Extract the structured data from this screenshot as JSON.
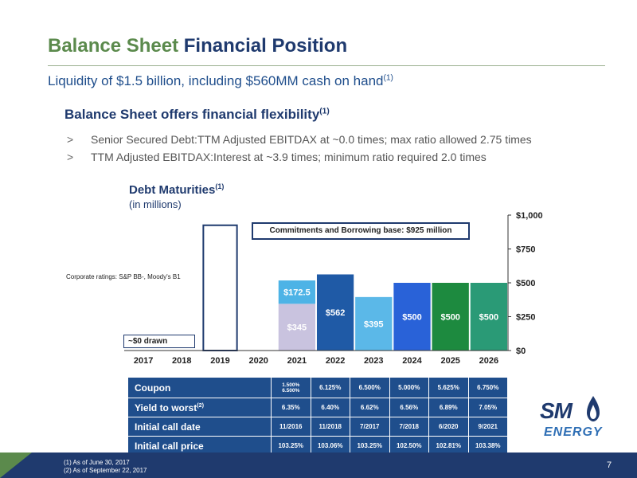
{
  "title": {
    "part1": "Balance Sheet ",
    "part2": "Financial Position"
  },
  "subtitle": {
    "text": "Liquidity of $1.5 billion, including $560MM cash on hand",
    "sup": "(1)"
  },
  "section": {
    "heading": "Balance Sheet offers financial flexibility",
    "sup": "(1)"
  },
  "bullets": [
    {
      "mark": ">",
      "text": "Senior Secured Debt:TTM Adjusted EBITDAX at ~0.0 times; max ratio allowed 2.75 times"
    },
    {
      "mark": ">",
      "text": "TTM Adjusted EBITDAX:Interest at ~3.9 times; minimum ratio required 2.0 times"
    }
  ],
  "chart_heading": {
    "title": "Debt Maturities",
    "sup": "(1)",
    "sub": "(in millions)"
  },
  "ratings": "Corporate ratings: S&P BB-, Moody's B1",
  "callouts": {
    "borrowing": "Commitments and Borrowing base: $925 million",
    "drawn": "~$0 drawn"
  },
  "chart_data": {
    "type": "bar",
    "categories": [
      "2017",
      "2018",
      "2019",
      "2020",
      "2021",
      "2022",
      "2023",
      "2024",
      "2025",
      "2026"
    ],
    "ylim": [
      0,
      1000
    ],
    "yticks": [
      "$0",
      "$250",
      "$500",
      "$750",
      "$1,000"
    ],
    "yticks_values": [
      0,
      250,
      500,
      750,
      1000
    ],
    "bars": [
      {
        "category": "2019",
        "value": 925,
        "label": "",
        "style": "outline",
        "color": "#1f3a6e"
      },
      {
        "category": "2021",
        "value": 345,
        "label": "$345",
        "color": "#c9c3df"
      },
      {
        "category": "2021",
        "value": 172.5,
        "base": 345,
        "label": "$172.5",
        "color": "#4db3e6"
      },
      {
        "category": "2022",
        "value": 562,
        "label": "$562",
        "color": "#1f5aa6"
      },
      {
        "category": "2023",
        "value": 395,
        "label": "$395",
        "color": "#5bb8e8"
      },
      {
        "category": "2024",
        "value": 500,
        "label": "$500",
        "color": "#2962d8"
      },
      {
        "category": "2025",
        "value": 500,
        "label": "$500",
        "color": "#1d8a3f"
      },
      {
        "category": "2026",
        "value": 500,
        "label": "$500",
        "color": "#2a9a76"
      }
    ]
  },
  "table": {
    "rows": [
      {
        "label": "Coupon",
        "sup": "",
        "cells": [
          "1.500%\n6.500%",
          "6.125%",
          "6.500%",
          "5.000%",
          "5.625%",
          "6.750%"
        ]
      },
      {
        "label": "Yield to worst",
        "sup": "(2)",
        "cells": [
          "6.35%",
          "6.40%",
          "6.62%",
          "6.56%",
          "6.89%",
          "7.05%"
        ]
      },
      {
        "label": "Initial call date",
        "sup": "",
        "cells": [
          "11/2016",
          "11/2018",
          "7/2017",
          "7/2018",
          "6/2020",
          "9/2021"
        ]
      },
      {
        "label": "Initial call price",
        "sup": "",
        "cells": [
          "103.25%",
          "103.06%",
          "103.25%",
          "102.50%",
          "102.81%",
          "103.38%"
        ]
      }
    ]
  },
  "logo": {
    "top": "SM",
    "bottom": "ENERGY"
  },
  "footnotes": [
    "(1)   As of June 30, 2017",
    "(2)   As of September 22, 2017"
  ],
  "page_number": "7",
  "colors": {
    "navy": "#1f3a6e",
    "green": "#5b8a4c",
    "table_blue": "#1f4e8c"
  }
}
